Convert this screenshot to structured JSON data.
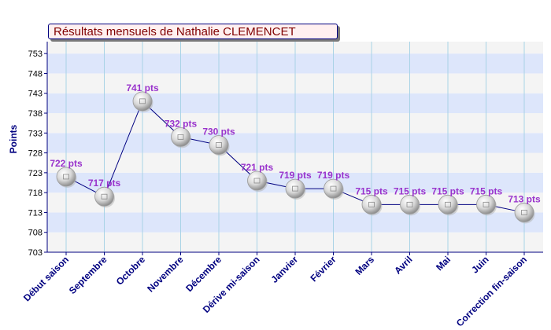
{
  "chart_data": {
    "type": "line",
    "title": "Résultats mensuels de Nathalie CLEMENCET",
    "ylabel": "Points",
    "xlabel": "",
    "ylim": [
      703,
      756
    ],
    "yticks": [
      "703",
      "708",
      "713",
      "718",
      "723",
      "728",
      "733",
      "738",
      "743",
      "748",
      "753"
    ],
    "categories": [
      "Début saison",
      "Septembre",
      "Octobre",
      "Novembre",
      "Décembre",
      "Dérive mi-saison",
      "Janvier",
      "Février",
      "Mars",
      "Avril",
      "Mai",
      "Juin",
      "Correction fin-saison"
    ],
    "values": [
      722,
      717,
      741,
      732,
      730,
      721,
      719,
      719,
      715,
      715,
      715,
      715,
      713
    ],
    "point_labels": [
      "722 pts",
      "717 pts",
      "741 pts",
      "732 pts",
      "730 pts",
      "721 pts",
      "719 pts",
      "719 pts",
      "715 pts",
      "715 pts",
      "715 pts",
      "715 pts",
      "713 pts"
    ],
    "grid": true,
    "colors": {
      "line": "#000080",
      "band": "#dde6fb",
      "title": "#800000",
      "label": "#9933cc",
      "axis": "#000080"
    }
  }
}
